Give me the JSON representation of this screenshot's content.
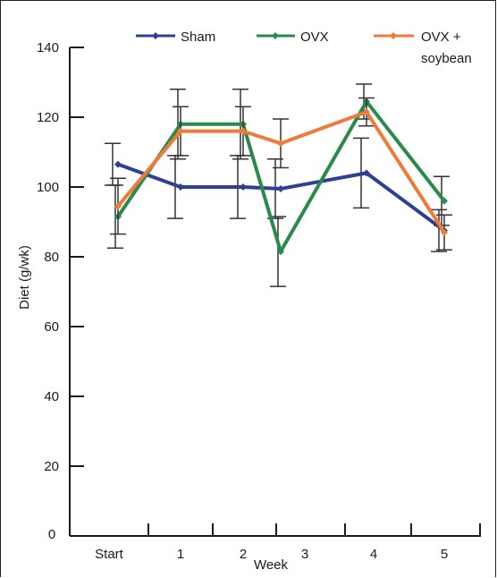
{
  "chart_data": {
    "type": "line",
    "xlabel": "Week",
    "ylabel": "Diet (g/wk)",
    "categories": [
      "Start",
      "1",
      "2",
      "3",
      "4",
      "5"
    ],
    "ylim": [
      0,
      140
    ],
    "yticks": [
      0,
      20,
      40,
      60,
      80,
      100,
      120,
      140
    ],
    "grid": false,
    "legend_position": "top",
    "series": [
      {
        "name": "Sham",
        "color": "#2e3f96",
        "values": [
          106.5,
          100,
          100,
          99.5,
          104,
          87.5
        ],
        "error": [
          6,
          9,
          9,
          8.5,
          10,
          6
        ]
      },
      {
        "name": "OVX",
        "color": "#2a8a4a",
        "values": [
          91.5,
          118,
          118,
          81.5,
          124.5,
          96
        ],
        "error": [
          9,
          10,
          10,
          10,
          5,
          7
        ]
      },
      {
        "name": "OVX + soybean",
        "color": "#f07a3a",
        "values": [
          94.5,
          116,
          116,
          112.5,
          121.5,
          87
        ],
        "error": [
          8,
          7,
          7,
          7,
          4,
          5
        ]
      }
    ]
  },
  "legend": {
    "sham_label": "Sham",
    "ovx_label": "OVX",
    "ovx_soy_label_1": "OVX +",
    "ovx_soy_label_2": "soybean"
  },
  "axes": {
    "xlabel": "Week",
    "ylabel": "Diet (g/wk)",
    "zero_label": "0"
  }
}
